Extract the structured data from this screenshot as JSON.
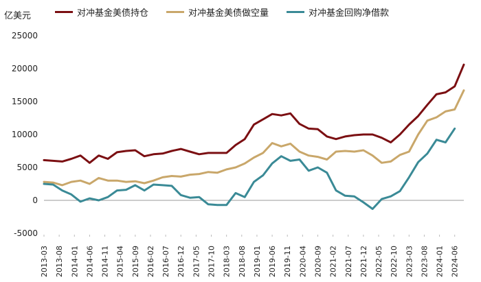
{
  "chart_data": {
    "type": "line",
    "unit_label": "亿美元",
    "ylim": [
      -5000,
      25000
    ],
    "yticks": [
      -5000,
      0,
      5000,
      10000,
      15000,
      20000,
      25000
    ],
    "xtick_labels": [
      "2013-03",
      "2013-08",
      "2014-01",
      "2014-06",
      "2014-11",
      "2015-04",
      "2015-09",
      "2016-02",
      "2016-07",
      "2016-12",
      "2017-05",
      "2017-10",
      "2018-03",
      "2018-08",
      "2019-01",
      "2019-06",
      "2019-11",
      "2020-04",
      "2020-09",
      "2021-02",
      "2021-07",
      "2021-12",
      "2022-05",
      "2022-10",
      "2023-03",
      "2023-08",
      "2024-01",
      "2024-06"
    ],
    "x": [
      "2013-03",
      "2013-06",
      "2013-09",
      "2013-12",
      "2014-03",
      "2014-06",
      "2014-09",
      "2014-12",
      "2015-03",
      "2015-06",
      "2015-09",
      "2015-12",
      "2016-03",
      "2016-06",
      "2016-09",
      "2016-12",
      "2017-03",
      "2017-06",
      "2017-09",
      "2017-12",
      "2018-03",
      "2018-06",
      "2018-09",
      "2018-12",
      "2019-03",
      "2019-06",
      "2019-09",
      "2019-12",
      "2020-03",
      "2020-06",
      "2020-09",
      "2020-12",
      "2021-03",
      "2021-06",
      "2021-09",
      "2021-12",
      "2022-03",
      "2022-06",
      "2022-09",
      "2022-12",
      "2023-03",
      "2023-06",
      "2023-09",
      "2023-12",
      "2024-03",
      "2024-06",
      "2024-09"
    ],
    "series": [
      {
        "name": "对冲基金美债持仓",
        "color": "#7b0f12",
        "values": [
          6100,
          6000,
          5900,
          6300,
          6800,
          5700,
          6800,
          6300,
          7300,
          7500,
          7600,
          6700,
          7000,
          7100,
          7500,
          7800,
          7400,
          7000,
          7200,
          7200,
          7200,
          8400,
          9300,
          11500,
          12300,
          13100,
          12900,
          13200,
          11600,
          10900,
          10800,
          9700,
          9300,
          9700,
          9900,
          10000,
          10000,
          9500,
          8800,
          10000,
          11500,
          12800,
          14500,
          16100,
          16400,
          17300,
          20600
        ]
      },
      {
        "name": "对冲基金美债做空量",
        "color": "#c9a76a",
        "values": [
          2800,
          2700,
          2300,
          2800,
          3000,
          2500,
          3400,
          3000,
          3000,
          2800,
          2900,
          2600,
          3000,
          3500,
          3700,
          3600,
          3900,
          4000,
          4300,
          4200,
          4700,
          5000,
          5600,
          6500,
          7200,
          8700,
          8200,
          8600,
          7400,
          6800,
          6600,
          6200,
          7400,
          7500,
          7400,
          7600,
          6800,
          5700,
          5900,
          6900,
          7400,
          10000,
          12100,
          12600,
          13500,
          13800,
          16700
        ]
      },
      {
        "name": "对冲基金回购净借款",
        "color": "#3a8a96",
        "values": [
          2500,
          2400,
          1500,
          900,
          -200,
          300,
          0,
          500,
          1500,
          1600,
          2300,
          1500,
          2400,
          2300,
          2200,
          800,
          400,
          500,
          -600,
          -700,
          -700,
          1100,
          500,
          2800,
          3800,
          5600,
          6700,
          6000,
          6200,
          4500,
          5000,
          4200,
          1500,
          700,
          600,
          -300,
          -1300,
          200,
          600,
          1400,
          3500,
          5800,
          7100,
          9200,
          8800,
          10900,
          null
        ]
      }
    ]
  }
}
